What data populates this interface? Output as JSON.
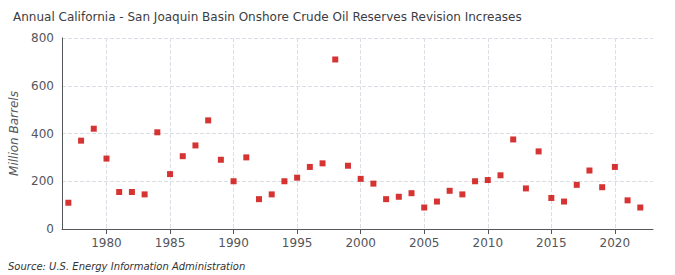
{
  "chart_data": {
    "type": "scatter",
    "title": "Annual California - San Joaquin Basin Onshore Crude Oil Reserves Revision Increases",
    "ylabel": "Million Barrels",
    "annotation": "Source: U.S. Energy Information Administration",
    "color": "#cc0000",
    "marker": "square",
    "grid": true,
    "xlim": [
      1976.5,
      2023
    ],
    "xticks": [
      1980,
      1985,
      1990,
      1995,
      2000,
      2005,
      2010,
      2015,
      2020
    ],
    "ylim": [
      0,
      800
    ],
    "yticks": [
      0,
      200,
      400,
      600,
      800
    ],
    "x": [
      1977,
      1978,
      1979,
      1980,
      1981,
      1982,
      1983,
      1984,
      1985,
      1986,
      1987,
      1988,
      1989,
      1990,
      1991,
      1992,
      1993,
      1994,
      1995,
      1996,
      1997,
      1998,
      1999,
      2000,
      2001,
      2002,
      2003,
      2004,
      2005,
      2006,
      2007,
      2008,
      2009,
      2010,
      2011,
      2012,
      2013,
      2014,
      2015,
      2016,
      2017,
      2018,
      2019,
      2020,
      2021,
      2022
    ],
    "values": [
      110,
      370,
      420,
      295,
      155,
      155,
      145,
      405,
      230,
      305,
      350,
      455,
      290,
      200,
      300,
      125,
      145,
      200,
      215,
      260,
      275,
      710,
      265,
      210,
      190,
      125,
      135,
      150,
      90,
      115,
      160,
      145,
      200,
      205,
      225,
      375,
      170,
      325,
      130,
      115,
      185,
      245,
      175,
      260,
      120,
      90
    ]
  }
}
